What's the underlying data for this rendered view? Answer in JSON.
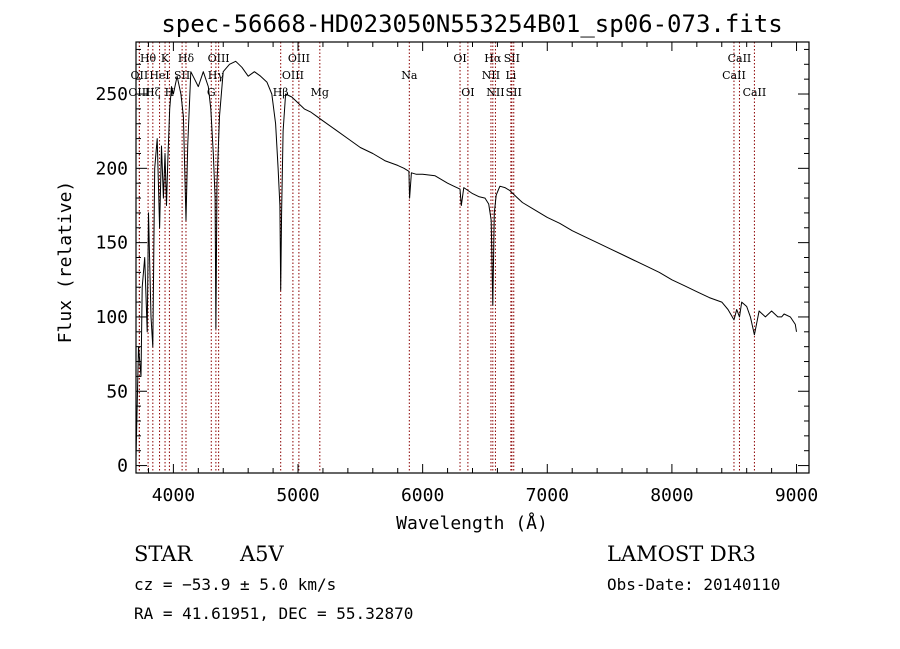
{
  "chart_data": {
    "type": "line",
    "title": "spec-56668-HD023050N553254B01_sp06-073.fits",
    "xlabel": "Wavelength (Å)",
    "ylabel": "Flux (relative)",
    "xlim": [
      3700,
      9100
    ],
    "ylim": [
      -5,
      285
    ],
    "xticks": [
      4000,
      5000,
      6000,
      7000,
      8000,
      9000
    ],
    "yticks": [
      0,
      50,
      100,
      150,
      200,
      250
    ],
    "grid": false,
    "series": [
      {
        "name": "spectrum",
        "x": [
          3700,
          3720,
          3740,
          3750,
          3770,
          3790,
          3800,
          3820,
          3835,
          3850,
          3870,
          3889,
          3905,
          3920,
          3933,
          3945,
          3955,
          3970,
          3985,
          4000,
          4030,
          4060,
          4080,
          4101,
          4115,
          4140,
          4170,
          4200,
          4240,
          4280,
          4300,
          4320,
          4335,
          4341,
          4350,
          4370,
          4400,
          4450,
          4500,
          4550,
          4600,
          4650,
          4700,
          4750,
          4790,
          4820,
          4840,
          4855,
          4861,
          4868,
          4880,
          4900,
          4950,
          5000,
          5050,
          5100,
          5150,
          5200,
          5300,
          5400,
          5500,
          5600,
          5700,
          5800,
          5850,
          5890,
          5895,
          5910,
          5950,
          6000,
          6100,
          6200,
          6250,
          6300,
          6310,
          6330,
          6400,
          6450,
          6500,
          6530,
          6550,
          6563,
          6575,
          6590,
          6620,
          6660,
          6700,
          6750,
          6800,
          6900,
          7000,
          7100,
          7200,
          7300,
          7400,
          7500,
          7600,
          7700,
          7800,
          7900,
          8000,
          8100,
          8200,
          8300,
          8400,
          8450,
          8498,
          8520,
          8542,
          8560,
          8600,
          8630,
          8662,
          8700,
          8750,
          8800,
          8850,
          8880,
          8900,
          8950,
          8990,
          9000
        ],
        "y": [
          5,
          80,
          60,
          120,
          140,
          90,
          170,
          100,
          80,
          200,
          220,
          160,
          215,
          180,
          210,
          175,
          205,
          240,
          255,
          250,
          262,
          250,
          235,
          165,
          215,
          265,
          260,
          255,
          265,
          255,
          240,
          210,
          180,
          92,
          190,
          235,
          265,
          270,
          272,
          268,
          262,
          265,
          262,
          258,
          250,
          230,
          200,
          175,
          118,
          170,
          225,
          250,
          248,
          244,
          240,
          238,
          235,
          232,
          226,
          220,
          214,
          210,
          205,
          202,
          200,
          198,
          180,
          197,
          196,
          196,
          195,
          190,
          188,
          186,
          175,
          187,
          183,
          181,
          180,
          176,
          165,
          108,
          170,
          182,
          188,
          187,
          185,
          181,
          177,
          172,
          167,
          163,
          158,
          154,
          150,
          146,
          142,
          138,
          134,
          130,
          125,
          121,
          117,
          113,
          110,
          105,
          98,
          105,
          100,
          110,
          107,
          100,
          88,
          104,
          100,
          104,
          100,
          100,
          102,
          100,
          95,
          90
        ]
      }
    ],
    "line_markers": [
      {
        "label": "Hθ",
        "x": 3797,
        "row": 1
      },
      {
        "label": "OII",
        "x": 3727,
        "row": 2
      },
      {
        "label": "OIII",
        "x": 3727,
        "row": 3
      },
      {
        "label": "K",
        "x": 3933,
        "row": 1
      },
      {
        "label": "HeI",
        "x": 3889,
        "row": 2
      },
      {
        "label": "Hζ",
        "x": 3835,
        "row": 3
      },
      {
        "label": "Hδ",
        "x": 4101,
        "row": 1
      },
      {
        "label": "SII",
        "x": 4070,
        "row": 2
      },
      {
        "label": "H",
        "x": 3968,
        "row": 3
      },
      {
        "label": "OIII",
        "x": 4363,
        "row": 1
      },
      {
        "label": "Hγ",
        "x": 4341,
        "row": 2
      },
      {
        "label": "G",
        "x": 4304,
        "row": 3
      },
      {
        "label": "OIII",
        "x": 5007,
        "row": 1
      },
      {
        "label": "OIII",
        "x": 4959,
        "row": 2
      },
      {
        "label": "Hβ",
        "x": 4861,
        "row": 3
      },
      {
        "label": "Mg",
        "x": 5175,
        "row": 3
      },
      {
        "label": "Na",
        "x": 5893,
        "row": 2
      },
      {
        "label": "OI",
        "x": 6300,
        "row": 1
      },
      {
        "label": "OI",
        "x": 6363,
        "row": 3
      },
      {
        "label": "Hα",
        "x": 6563,
        "row": 1
      },
      {
        "label": "SII",
        "x": 6716,
        "row": 1
      },
      {
        "label": "NII",
        "x": 6548,
        "row": 2
      },
      {
        "label": "Li",
        "x": 6708,
        "row": 2
      },
      {
        "label": "NII",
        "x": 6584,
        "row": 3
      },
      {
        "label": "SII",
        "x": 6731,
        "row": 3
      },
      {
        "label": "CaII",
        "x": 8542,
        "row": 1
      },
      {
        "label": "CaII",
        "x": 8498,
        "row": 2
      },
      {
        "label": "CaII",
        "x": 8662,
        "row": 3
      }
    ]
  },
  "info": {
    "object_class": "STAR",
    "subclass": "A5V",
    "survey": "LAMOST DR3",
    "velocity": "cz = −53.9 ± 5.0 km/s",
    "obs_date": "Obs-Date: 20140110",
    "coords": "RA =  41.61951, DEC =  55.32870"
  }
}
